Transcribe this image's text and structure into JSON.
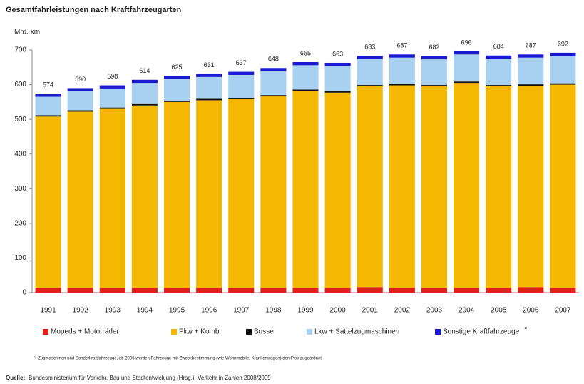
{
  "chart_data": {
    "type": "stacked_bar",
    "title": "Gesamtfahrleistungen nach Kraftfahrzeugarten",
    "y_axis_label": "Mrd. km",
    "categories": [
      "1991",
      "1992",
      "1993",
      "1994",
      "1995",
      "1996",
      "1997",
      "1998",
      "1999",
      "2000",
      "2001",
      "2002",
      "2003",
      "2004",
      "2005",
      "2006",
      "2007"
    ],
    "series": [
      {
        "name": "Mopeds + Motorräder",
        "color": "#e0201b",
        "values": [
          14,
          14,
          14,
          14,
          14,
          14,
          14,
          14,
          14,
          14,
          16,
          14,
          14,
          14,
          14,
          16,
          14
        ]
      },
      {
        "name": "Pkw + Kombi",
        "color": "#f5b800",
        "values": [
          494,
          508,
          516,
          526,
          536,
          541,
          544,
          552,
          568,
          563,
          579,
          584,
          581,
          591,
          581,
          581,
          586
        ]
      },
      {
        "name": "Busse",
        "color": "#111111",
        "values": [
          4,
          4,
          4,
          4,
          4,
          4,
          4,
          4,
          4,
          4,
          4,
          4,
          4,
          4,
          4,
          4,
          4
        ]
      },
      {
        "name": "Lkw + Sattelzugmaschinen",
        "color": "#a8d0f0",
        "values": [
          53,
          55,
          55,
          61,
          62,
          63,
          66,
          69,
          70,
          73,
          75,
          76,
          74,
          78,
          76,
          77,
          79
        ]
      },
      {
        "name": "Sonstige Kraftfahrzeuge",
        "color": "#1a1ad0",
        "values": [
          9,
          9,
          9,
          9,
          9,
          9,
          9,
          9,
          9,
          9,
          9,
          9,
          9,
          9,
          9,
          9,
          9
        ]
      }
    ],
    "totals": [
      574,
      590,
      598,
      614,
      625,
      631,
      637,
      648,
      665,
      663,
      683,
      687,
      682,
      696,
      684,
      687,
      692
    ],
    "legend_note": "¹⁾",
    "footnote": "¹⁾ Zugmaschinen und Sonderkraftfahrzeuge, ab 2006 werden Fahrzeuge mit Zweckbestimmung (wie Wohnmobile, Krankenwagen) den Pkw zugeordnet",
    "source_label": "Quelle:",
    "source": "Bundesministerium für Verkehr, Bau und Stadtentwicklung (Hrsg.): Verkehr in Zahlen 2008/2009",
    "ylim": [
      0,
      700
    ],
    "yticks": [
      0,
      100,
      200,
      300,
      400,
      500,
      600,
      700
    ],
    "grid": false
  }
}
